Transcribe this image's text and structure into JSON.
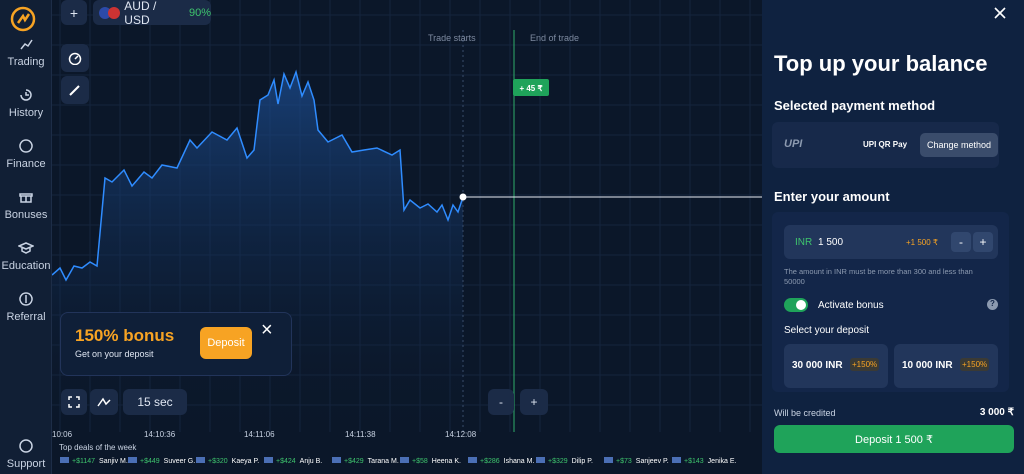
{
  "topbar": {
    "add": "+",
    "pair": "AUD / USD",
    "payout": "90%"
  },
  "sidebar": [
    "Trading",
    "History",
    "Finance",
    "Bonuses",
    "Education",
    "Referral",
    "Support"
  ],
  "chart": {
    "trade_starts": "Trade starts",
    "end_of_trade": "End of trade",
    "profit": "+ 45 ₹",
    "times": [
      "10:06",
      "14:10:36",
      "14:11:06",
      "14:11:38",
      "14:12:08"
    ]
  },
  "bonus": {
    "title": "150% bonus",
    "subtitle": "Get on your deposit",
    "button": "Deposit",
    "close": "×"
  },
  "controls": {
    "duration": "15 sec",
    "minus": "-",
    "plus": "+"
  },
  "deals": {
    "title": "Top deals of the week",
    "items": [
      [
        "+$1147",
        "Sanjiv M."
      ],
      [
        "+$449",
        "Suveer G."
      ],
      [
        "+$320",
        "Kaeya P."
      ],
      [
        "+$424",
        "Anju B."
      ],
      [
        "+$429",
        "Tarana M."
      ],
      [
        "+$58",
        "Heena K."
      ],
      [
        "+$286",
        "Ishana M."
      ],
      [
        "+$329",
        "Dilip P."
      ],
      [
        "+$73",
        "Sanjeev P."
      ],
      [
        "+$143",
        "Jenika E."
      ]
    ]
  },
  "panel": {
    "title": "Top up your balance",
    "method_heading": "Selected payment method",
    "method_logo": "UPI",
    "method_name": "UPI QR Pay",
    "change": "Change method",
    "amount_heading": "Enter your amount",
    "currency": "INR",
    "amount": "1 500",
    "bonus_amount": "+1 500 ₹",
    "minus": "-",
    "plus": "+",
    "hint": "The amount in INR must be more than 300 and less than 50000",
    "activate": "Activate bonus",
    "help": "?",
    "select": "Select your deposit",
    "options": [
      {
        "amount": "30 000 INR",
        "bonus": "+150%"
      },
      {
        "amount": "10 000 INR",
        "bonus": "+150%"
      }
    ],
    "credited_label": "Will be credited",
    "credited_value": "3 000 ₹",
    "deposit": "Deposit 1 500 ₹"
  }
}
